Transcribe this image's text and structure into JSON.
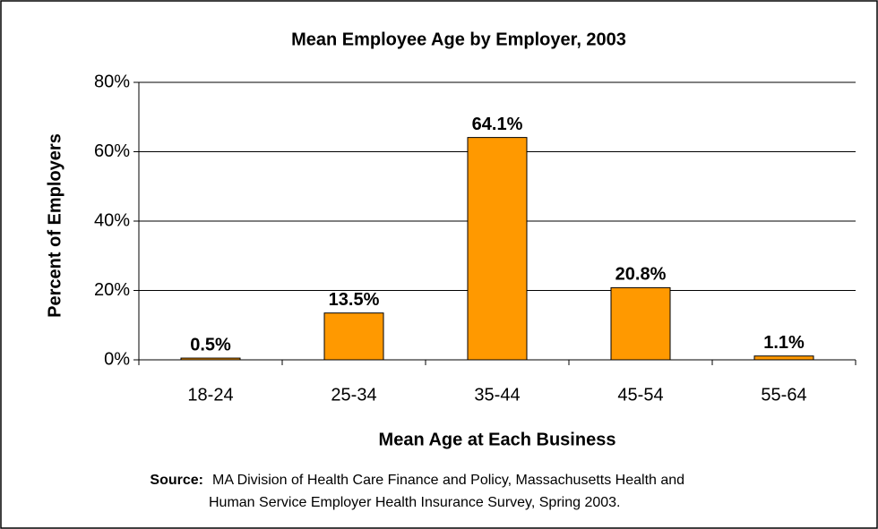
{
  "chart_data": {
    "type": "bar",
    "title": "Mean Employee Age by Employer, 2003",
    "x_label": "Mean Age at Each Business",
    "y_label": "Percent of Employers",
    "categories": [
      "18-24",
      "25-34",
      "35-44",
      "45-54",
      "55-64"
    ],
    "values": [
      0.5,
      13.5,
      64.1,
      20.8,
      1.1
    ],
    "value_labels": [
      "0.5%",
      "13.5%",
      "64.1%",
      "20.8%",
      "1.1%"
    ],
    "color": "#ff9900",
    "ylim": [
      0,
      80
    ],
    "yticks": [
      {
        "value": 0,
        "label": "0%"
      },
      {
        "value": 20,
        "label": "20%"
      },
      {
        "value": 40,
        "label": "40%"
      },
      {
        "value": 60,
        "label": "60%"
      },
      {
        "value": 80,
        "label": "80%"
      }
    ],
    "grid": true,
    "source_label": "Source:",
    "source_lines": [
      "MA Division of Health Care Finance and Policy, Massachusetts Health and",
      "Human Service Employer Health Insurance Survey, Spring 2003."
    ]
  }
}
